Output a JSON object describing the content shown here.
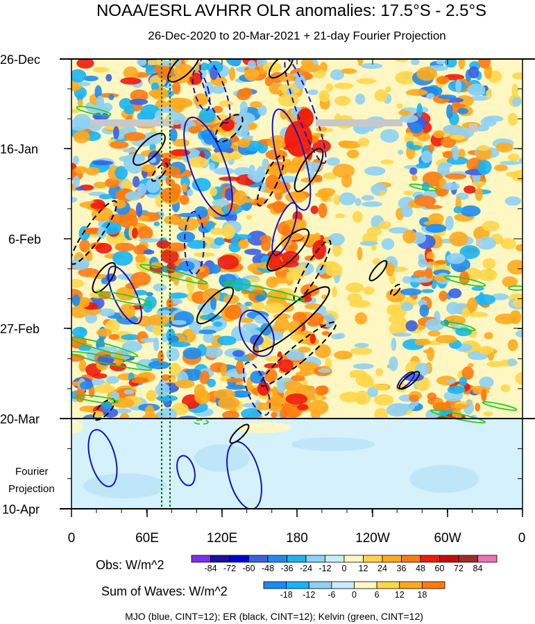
{
  "chart_data": {
    "type": "heatmap",
    "title": "NOAA/ESRL AVHRR OLR anomalies: 17.5°S - 2.5°S",
    "subtitle": "26-Dec-2020 to 20-Mar-2021 + 21-day Fourier Projection",
    "x_tick_labels": [
      "0",
      "60E",
      "120E",
      "180",
      "120W",
      "60W",
      "0"
    ],
    "y_tick_labels": [
      "26-Dec",
      "16-Jan",
      "6-Feb",
      "27-Feb",
      "20-Mar",
      "10-Apr"
    ],
    "projection_label_line1": "Fourier",
    "projection_label_line2": "Projection",
    "obs_colorbar": {
      "label": "Obs: W/m^2",
      "ticks": [
        "-84",
        "-72",
        "-60",
        "-48",
        "-36",
        "-24",
        "-12",
        "0",
        "12",
        "24",
        "36",
        "48",
        "60",
        "72",
        "84"
      ],
      "colors": [
        "#7b2ff0",
        "#1a0fa8",
        "#0000d8",
        "#3a5fe6",
        "#1c8cf0",
        "#1ab4f5",
        "#8fd0f5",
        "#c8ecfa",
        "#fff7c2",
        "#ffd64a",
        "#ffaa1e",
        "#ff7a10",
        "#f01a0a",
        "#c80a0a",
        "#a02a2a",
        "#f070b8"
      ]
    },
    "waves_colorbar": {
      "label": "Sum of Waves: W/m^2",
      "ticks": [
        "-18",
        "-12",
        "-6",
        "0",
        "6",
        "12",
        "18"
      ],
      "colors": [
        "#1c8cf0",
        "#1ab4f5",
        "#8fd0f5",
        "#c8ecfa",
        "#fff7c2",
        "#ffd64a",
        "#ffaa1e",
        "#ff7a10"
      ]
    },
    "footnote": "MJO (blue, CINT=12); ER (black, CINT=12); Kelvin (green, CINT=12)",
    "overlays": [
      {
        "name": "MJO",
        "color": "#1010d0",
        "contour_interval": 12
      },
      {
        "name": "ER",
        "color": "#000000",
        "contour_interval": 12
      },
      {
        "name": "Kelvin",
        "color": "#22cc22",
        "contour_interval": 12
      }
    ]
  }
}
